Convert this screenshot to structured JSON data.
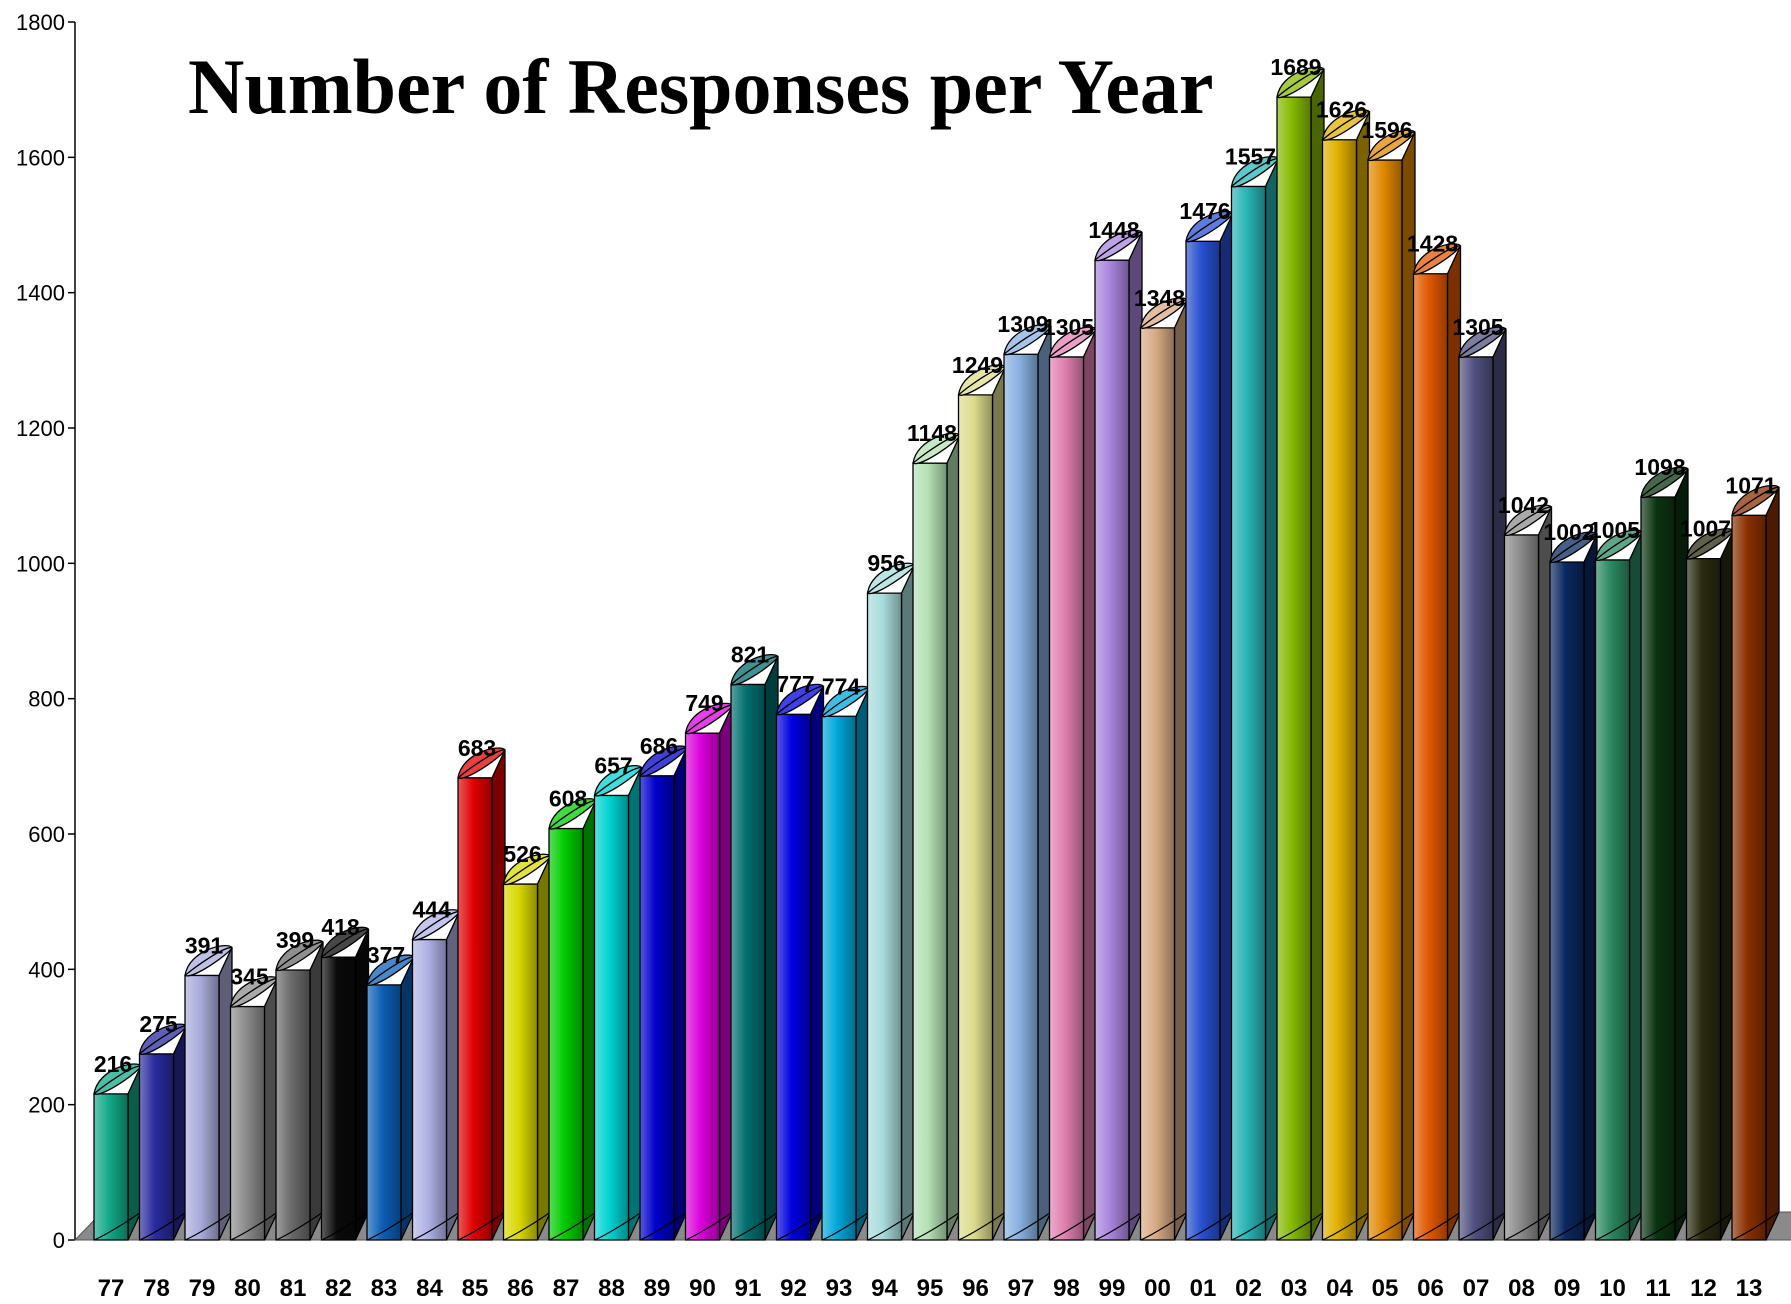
{
  "chart_data": {
    "type": "bar",
    "title": "Number of Responses per Year",
    "xlabel": "",
    "ylabel": "",
    "ylim": [
      0,
      1800
    ],
    "yticks": [
      0,
      200,
      400,
      600,
      800,
      1000,
      1200,
      1400,
      1600,
      1800
    ],
    "grid": false,
    "style": "3d-cylinder",
    "categories": [
      "77",
      "78",
      "79",
      "80",
      "81",
      "82",
      "83",
      "84",
      "85",
      "86",
      "87",
      "88",
      "89",
      "90",
      "91",
      "92",
      "93",
      "94",
      "95",
      "96",
      "97",
      "98",
      "99",
      "00",
      "01",
      "02",
      "03",
      "04",
      "05",
      "06",
      "07",
      "08",
      "09",
      "10",
      "11",
      "12",
      "13"
    ],
    "values": [
      216,
      275,
      391,
      345,
      399,
      418,
      377,
      444,
      683,
      526,
      608,
      657,
      686,
      749,
      821,
      777,
      774,
      956,
      1148,
      1249,
      1309,
      1305,
      1448,
      1348,
      1476,
      1557,
      1689,
      1626,
      1596,
      1428,
      1305,
      1042,
      1002,
      1005,
      1098,
      1007,
      1071
    ],
    "data_labels": [
      "216",
      "275",
      "391",
      "345",
      "399",
      "418",
      "377",
      "444",
      "683",
      "526",
      "608",
      "657",
      "686",
      "749",
      "821",
      "777",
      "774",
      "956",
      "1148",
      "1249",
      "1309",
      "1305",
      "1448",
      "1348",
      "1476",
      "1557",
      "1689",
      "1626",
      "1596",
      "1428",
      "1305",
      "1042",
      "1002",
      "1005",
      "1098",
      "1007",
      "1071"
    ],
    "colors": [
      "#12a888",
      "#2a2aa0",
      "#a9abdb",
      "#8c8c8c",
      "#6a6a6a",
      "#0a0a0a",
      "#0b5fb8",
      "#b0b2e6",
      "#e00000",
      "#d8d800",
      "#00cc00",
      "#00d2d2",
      "#0000cc",
      "#dc00dc",
      "#006e6e",
      "#0000e0",
      "#00a6d8",
      "#a8dcdc",
      "#b4e0b4",
      "#dcdc8c",
      "#88b0e0",
      "#e080b0",
      "#a884dc",
      "#d8aa84",
      "#2850d0",
      "#28b4b4",
      "#84b800",
      "#e0b000",
      "#e08800",
      "#e05800",
      "#505080",
      "#8c8c8c",
      "#0a2860",
      "#2a8860",
      "#0a3410",
      "#2a2a10",
      "#8a3000"
    ],
    "floor_color": "#8a8a8a"
  }
}
